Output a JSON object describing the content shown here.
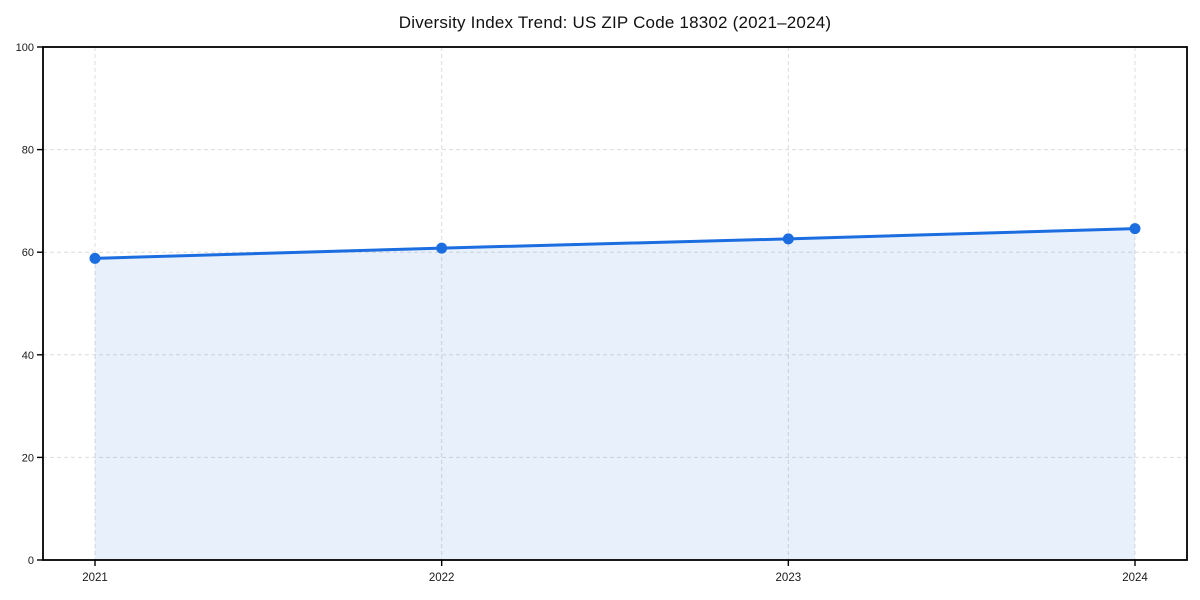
{
  "page": {
    "background": "#ffffff"
  },
  "chart_data": {
    "type": "area",
    "title": "Diversity Index Trend: US ZIP Code 18302 (2021–2024)",
    "categories": [
      "2021",
      "2022",
      "2023",
      "2024"
    ],
    "values": [
      58.8,
      60.8,
      62.6,
      64.6
    ],
    "xlabel": "",
    "ylabel": "",
    "ylim": [
      0,
      100
    ],
    "yticks": [
      0,
      20,
      40,
      60,
      80,
      100
    ],
    "grid": true,
    "grid_style": "dashed",
    "legend": "none",
    "marker": "circle",
    "colors": {
      "line": "#1b6de0",
      "fill_opacity": 0.1,
      "grid": "#dcdcdc",
      "spine": "#000000",
      "tick_text": "#1a1a1a",
      "title_text": "#111111",
      "background": "#ffffff"
    }
  }
}
